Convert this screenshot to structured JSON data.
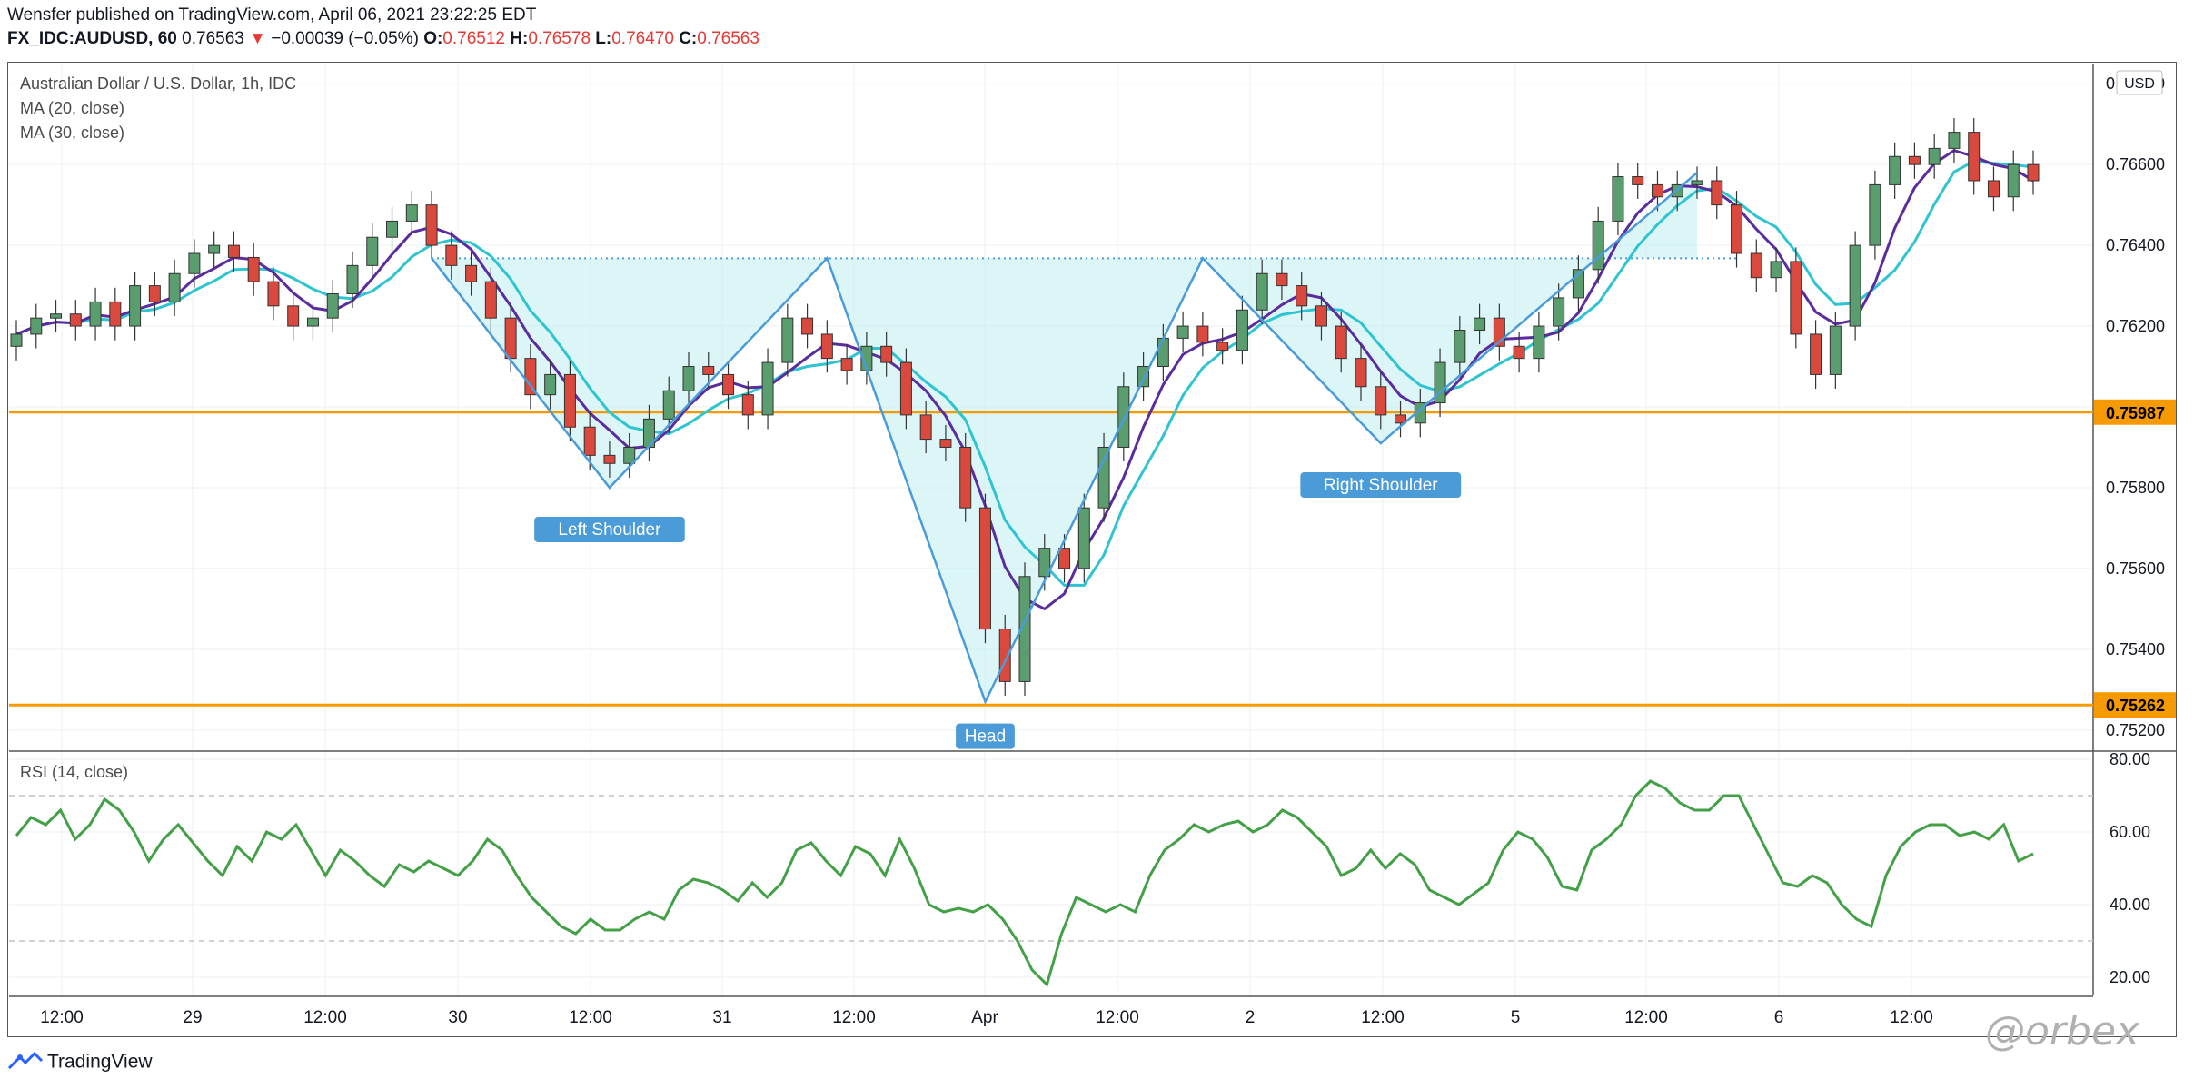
{
  "header": {
    "published_line": "Wensfer published on TradingView.com, April 06, 2021 23:22:25 EDT",
    "symbol": "FX_IDC:AUDUSD, 60",
    "last": "0.76563",
    "change": "−0.00039 (−0.05%)",
    "open_label": "O:",
    "open": "0.76512",
    "high_label": "H:",
    "high": "0.76578",
    "low_label": "L:",
    "low": "0.76470",
    "close_label": "C:",
    "close": "0.76563"
  },
  "legend": {
    "title": "Australian Dollar / U.S. Dollar, 1h, IDC",
    "ma20": "MA (20, close)",
    "ma30": "MA (30, close)",
    "rsi": "RSI (14, close)"
  },
  "footer": {
    "brand": "TradingView",
    "watermark": "@orbex"
  },
  "colors": {
    "up": "#26a69a",
    "up_fill": "#5a9e6f",
    "down": "#d9493d",
    "ma20": "#5b2c9e",
    "ma30": "#2ec4d0",
    "level": "#f59a00",
    "pattern": "#4a9bd8",
    "rsi": "#43a047",
    "label_bg": "#4a9bd8"
  },
  "chart_data": [
    {
      "type": "candlestick",
      "title": "Australian Dollar / U.S. Dollar, 1h, IDC",
      "currency_label": "USD",
      "ylim": [
        0.7515,
        0.7685
      ],
      "y_ticks": [
        "0.76800",
        "0.76600",
        "0.76400",
        "0.76200",
        "0.75800",
        "0.75600",
        "0.75400",
        "0.75200"
      ],
      "x_ticks": [
        "12:00",
        "29",
        "12:00",
        "30",
        "12:00",
        "31",
        "12:00",
        "Apr",
        "12:00",
        "2",
        "12:00",
        "5",
        "12:00",
        "6",
        "12:00"
      ],
      "horizontal_levels": [
        {
          "label": "0.75987",
          "value": 0.75987
        },
        {
          "label": "0.75262",
          "value": 0.75262
        }
      ],
      "neckline": 0.76368,
      "pattern_points": [
        {
          "label": "Left Shoulder",
          "x_index": 30,
          "price": 0.758
        },
        {
          "label": "Head",
          "x_index": 49,
          "price": 0.7527
        },
        {
          "label": "Right Shoulder",
          "x_index": 69,
          "price": 0.7591
        }
      ],
      "pattern_path": [
        [
          21,
          0.76368
        ],
        [
          30,
          0.758
        ],
        [
          41,
          0.76368
        ],
        [
          49,
          0.7527
        ],
        [
          60,
          0.76368
        ],
        [
          69,
          0.7591
        ],
        [
          85,
          0.7658
        ]
      ],
      "ohlc_close": [
        0.7618,
        0.7622,
        0.7623,
        0.762,
        0.7626,
        0.762,
        0.763,
        0.7626,
        0.7633,
        0.7638,
        0.764,
        0.7637,
        0.7631,
        0.7625,
        0.762,
        0.7622,
        0.7628,
        0.7635,
        0.7642,
        0.7646,
        0.765,
        0.764,
        0.7635,
        0.7631,
        0.7622,
        0.7612,
        0.7603,
        0.7608,
        0.7595,
        0.7588,
        0.7586,
        0.759,
        0.7597,
        0.7604,
        0.761,
        0.7608,
        0.7603,
        0.7598,
        0.7611,
        0.7622,
        0.7618,
        0.7612,
        0.7609,
        0.7615,
        0.7611,
        0.7598,
        0.7592,
        0.759,
        0.7575,
        0.7545,
        0.7532,
        0.7558,
        0.7565,
        0.756,
        0.7575,
        0.759,
        0.7605,
        0.761,
        0.7617,
        0.762,
        0.7616,
        0.7614,
        0.7624,
        0.7633,
        0.763,
        0.7625,
        0.762,
        0.7612,
        0.7605,
        0.7598,
        0.7596,
        0.7601,
        0.7611,
        0.7619,
        0.7622,
        0.7615,
        0.7612,
        0.762,
        0.7627,
        0.7634,
        0.7646,
        0.7657,
        0.7655,
        0.7652,
        0.7655,
        0.7656,
        0.765,
        0.7638,
        0.7632,
        0.7636,
        0.7618,
        0.7608,
        0.762,
        0.764,
        0.7655,
        0.7662,
        0.766,
        0.7664,
        0.7668,
        0.7656,
        0.7652,
        0.766,
        0.7656
      ],
      "series": [
        {
          "name": "MA (20, close)"
        },
        {
          "name": "MA (30, close)"
        }
      ]
    },
    {
      "type": "line",
      "title": "RSI (14, close)",
      "ylim": [
        15,
        82
      ],
      "y_ticks": [
        "80.00",
        "60.00",
        "40.00",
        "20.00"
      ],
      "bands": [
        30,
        70
      ],
      "values": [
        59,
        64,
        62,
        66,
        58,
        62,
        69,
        66,
        60,
        52,
        58,
        62,
        57,
        52,
        48,
        56,
        52,
        60,
        58,
        62,
        55,
        48,
        55,
        52,
        48,
        45,
        51,
        49,
        52,
        50,
        48,
        52,
        58,
        55,
        48,
        42,
        38,
        34,
        32,
        36,
        33,
        33,
        36,
        38,
        36,
        44,
        47,
        46,
        44,
        41,
        46,
        42,
        46,
        55,
        57,
        52,
        48,
        56,
        54,
        48,
        58,
        50,
        40,
        38,
        39,
        38,
        40,
        36,
        30,
        22,
        18,
        32,
        42,
        40,
        38,
        40,
        38,
        48,
        55,
        58,
        62,
        60,
        62,
        63,
        60,
        62,
        66,
        64,
        60,
        56,
        48,
        50,
        55,
        50,
        54,
        51,
        44,
        42,
        40,
        43,
        46,
        55,
        60,
        58,
        53,
        45,
        44,
        55,
        58,
        62,
        70,
        74,
        72,
        68,
        66,
        66,
        70,
        70,
        62,
        54,
        46,
        45,
        48,
        46,
        40,
        36,
        34,
        48,
        56,
        60,
        62,
        62,
        59,
        60,
        58,
        62,
        52,
        54
      ],
      "values_note": ""
    }
  ]
}
